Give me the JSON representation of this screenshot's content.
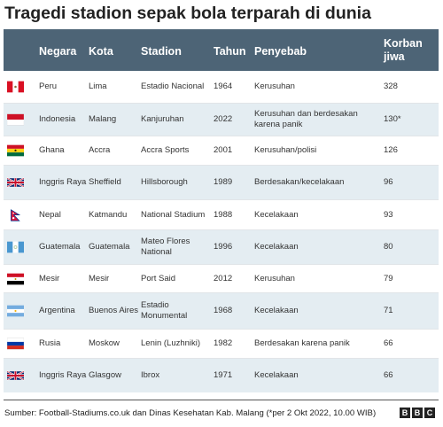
{
  "title": "Tragedi stadion sepak bola terparah di dunia",
  "columns": {
    "negara": "Negara",
    "kota": "Kota",
    "stadion": "Stadion",
    "tahun": "Tahun",
    "penyebab": "Penyebab",
    "korban_line1": "Korban",
    "korban_line2": "jiwa"
  },
  "rows": [
    {
      "flag": "peru-flag-icon",
      "negara": "Peru",
      "kota": "Lima",
      "stadion": "Estadio Nacional",
      "tahun": "1964",
      "penyebab": "Kerusuhan",
      "korban": "328"
    },
    {
      "flag": "indonesia-flag-icon",
      "negara": "Indonesia",
      "kota": "Malang",
      "stadion": "Kanjuruhan",
      "tahun": "2022",
      "penyebab": "Kerusuhan dan berdesakan karena panik",
      "korban": "130*"
    },
    {
      "flag": "ghana-flag-icon",
      "negara": "Ghana",
      "kota": "Accra",
      "stadion": "Accra Sports",
      "tahun": "2001",
      "penyebab": "Kerusuhan/polisi",
      "korban": "126"
    },
    {
      "flag": "uk-flag-icon",
      "negara": "Inggris Raya",
      "kota": "Sheffield",
      "stadion": "Hillsborough",
      "tahun": "1989",
      "penyebab": "Berdesakan/kecelakaan",
      "korban": "96"
    },
    {
      "flag": "nepal-flag-icon",
      "negara": "Nepal",
      "kota": "Katmandu",
      "stadion": "National Stadium",
      "tahun": "1988",
      "penyebab": "Kecelakaan",
      "korban": "93"
    },
    {
      "flag": "guatemala-flag-icon",
      "negara": "Guatemala",
      "kota": "Guatemala",
      "stadion": "Mateo Flores National",
      "tahun": "1996",
      "penyebab": "Kecelakaan",
      "korban": "80"
    },
    {
      "flag": "egypt-flag-icon",
      "negara": "Mesir",
      "kota": "Mesir",
      "stadion": "Port Said",
      "tahun": "2012",
      "penyebab": "Kerusuhan",
      "korban": "79"
    },
    {
      "flag": "argentina-flag-icon",
      "negara": "Argentina",
      "kota": "Buenos Aires",
      "stadion": "Estadio Monumental",
      "tahun": "1968",
      "penyebab": "Kecelakaan",
      "korban": "71"
    },
    {
      "flag": "russia-flag-icon",
      "negara": "Rusia",
      "kota": "Moskow",
      "stadion": "Lenin (Luzhniki)",
      "tahun": "1982",
      "penyebab": "Berdesakan karena panik",
      "korban": "66"
    },
    {
      "flag": "uk-flag-icon",
      "negara": "Inggris Raya",
      "kota": "Glasgow",
      "stadion": "Ibrox",
      "tahun": "1971",
      "penyebab": "Kecelakaan",
      "korban": "66"
    }
  ],
  "source": "Sumber: Football-Stadiums.co.uk dan Dinas Kesehatan Kab. Malang (*per 2 Okt 2022, 10.00 WIB)",
  "logo": [
    "B",
    "B",
    "C"
  ],
  "colors": {
    "header": "#4d6476",
    "alt_row": "#e4edf2"
  }
}
